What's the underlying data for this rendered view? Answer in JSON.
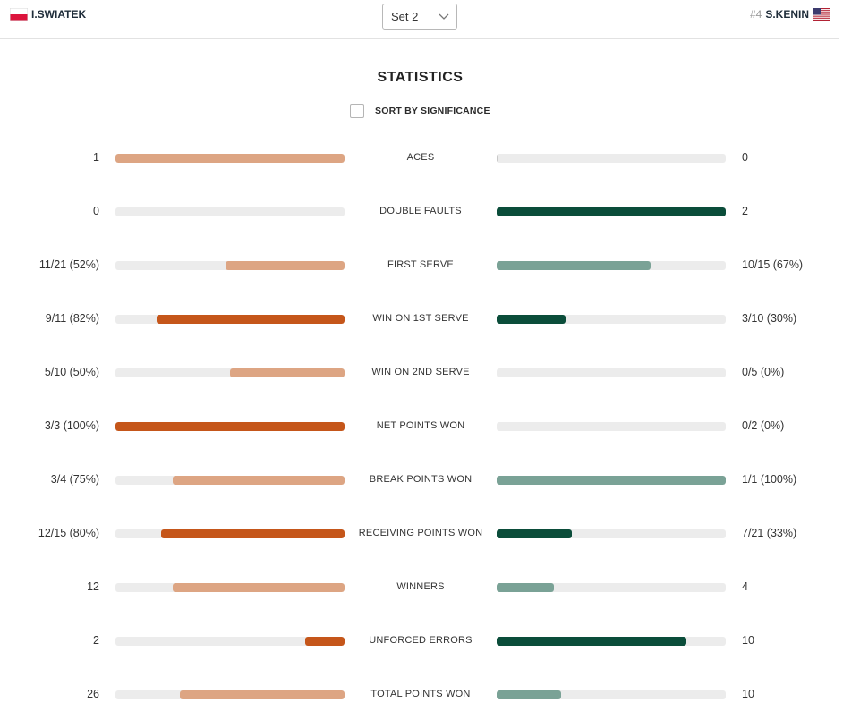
{
  "header": {
    "left_player": "I.SWIATEK",
    "right_seed": "#4",
    "right_player": "S.KENIN",
    "set_selector": "Set 2"
  },
  "title": "STATISTICS",
  "sort_label": "SORT BY SIGNIFICANCE",
  "sort_checked": false,
  "colors": {
    "left_light": "#dda583",
    "left_dark": "#c5561a",
    "right_light": "#7aa296",
    "right_dark": "#0b4d3a",
    "track": "#ececec"
  },
  "stats": [
    {
      "label": "ACES",
      "left": "1",
      "right": "0",
      "left_frac": 1.0,
      "right_frac": 0.0,
      "left_dark": false,
      "right_dark": false
    },
    {
      "label": "DOUBLE FAULTS",
      "left": "0",
      "right": "2",
      "left_frac": 0.0,
      "right_frac": 1.0,
      "left_dark": false,
      "right_dark": true
    },
    {
      "label": "FIRST SERVE",
      "left": "11/21 (52%)",
      "right": "10/15 (67%)",
      "left_frac": 0.52,
      "right_frac": 0.67,
      "left_dark": false,
      "right_dark": false
    },
    {
      "label": "WIN ON 1ST SERVE",
      "left": "9/11 (82%)",
      "right": "3/10 (30%)",
      "left_frac": 0.82,
      "right_frac": 0.3,
      "left_dark": true,
      "right_dark": true
    },
    {
      "label": "WIN ON 2ND SERVE",
      "left": "5/10 (50%)",
      "right": "0/5 (0%)",
      "left_frac": 0.5,
      "right_frac": 0.0,
      "left_dark": false,
      "right_dark": false
    },
    {
      "label": "NET POINTS WON",
      "left": "3/3 (100%)",
      "right": "0/2 (0%)",
      "left_frac": 1.0,
      "right_frac": 0.0,
      "left_dark": true,
      "right_dark": false
    },
    {
      "label": "BREAK POINTS WON",
      "left": "3/4 (75%)",
      "right": "1/1 (100%)",
      "left_frac": 0.75,
      "right_frac": 1.0,
      "left_dark": false,
      "right_dark": false
    },
    {
      "label": "RECEIVING POINTS WON",
      "left": "12/15 (80%)",
      "right": "7/21 (33%)",
      "left_frac": 0.8,
      "right_frac": 0.33,
      "left_dark": true,
      "right_dark": true
    },
    {
      "label": "WINNERS",
      "left": "12",
      "right": "4",
      "left_frac": 0.75,
      "right_frac": 0.25,
      "left_dark": false,
      "right_dark": false
    },
    {
      "label": "UNFORCED ERRORS",
      "left": "2",
      "right": "10",
      "left_frac": 0.17,
      "right_frac": 0.83,
      "left_dark": true,
      "right_dark": true
    },
    {
      "label": "TOTAL POINTS WON",
      "left": "26",
      "right": "10",
      "left_frac": 0.72,
      "right_frac": 0.28,
      "left_dark": false,
      "right_dark": false
    }
  ]
}
